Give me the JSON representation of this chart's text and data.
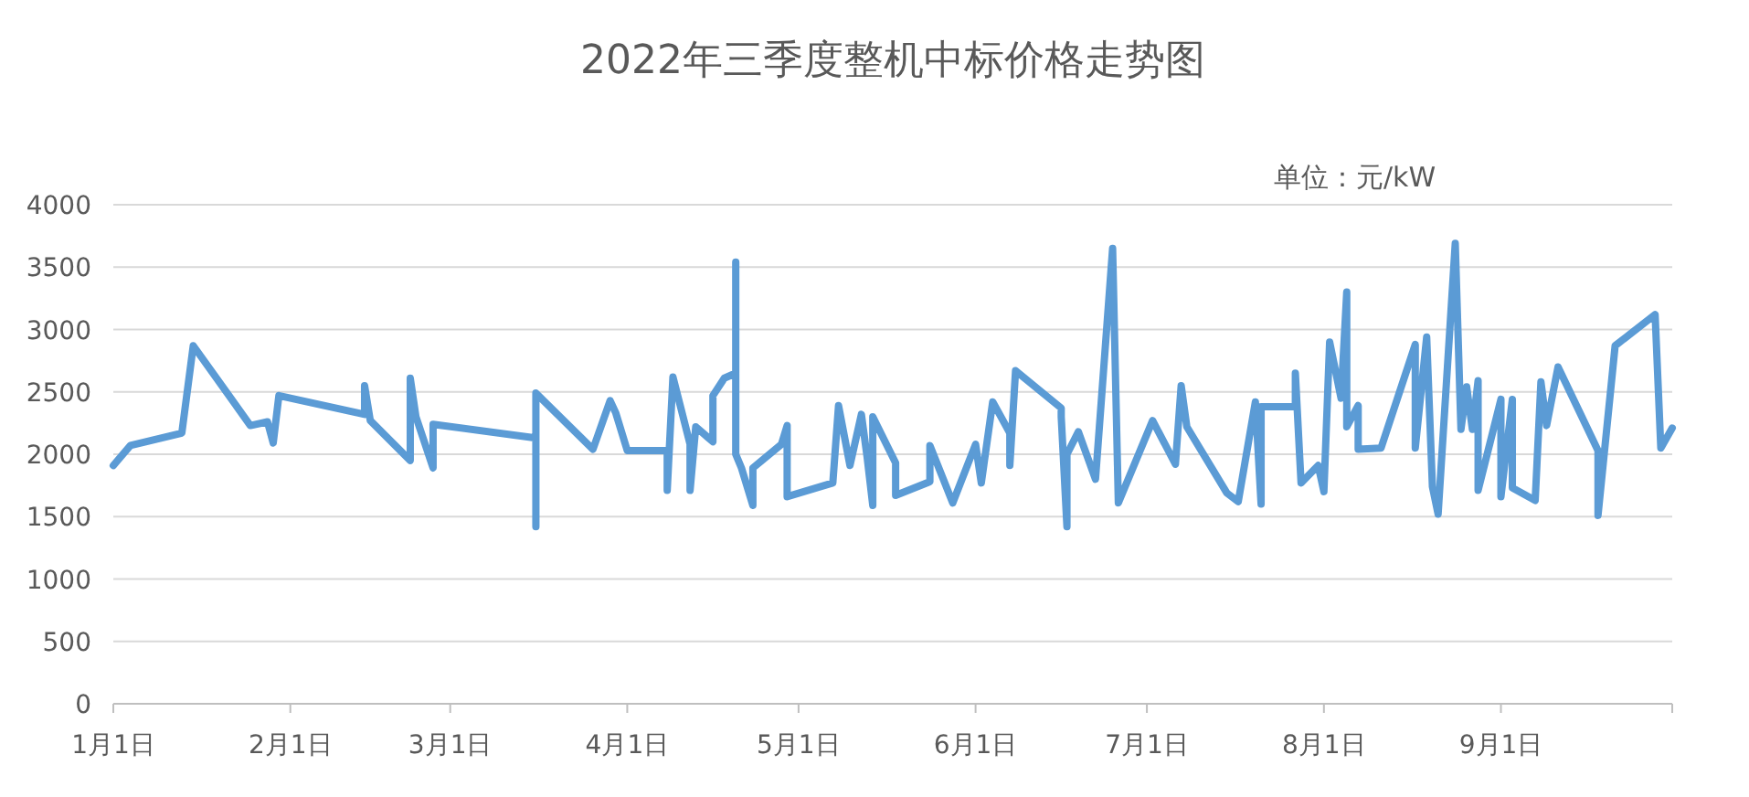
{
  "chart_data": {
    "type": "line",
    "title": "2022年三季度整机中标价格走势图",
    "annotations": [
      "单位：元/kW"
    ],
    "x": [
      "--01-01",
      "--01-04",
      "--01-13",
      "--01-15",
      "--01-25",
      "--01-28",
      "--01-29",
      "--01-30",
      "--02-14",
      "--02-14",
      "--02-15",
      "--02-22",
      "--02-22",
      "--02-23",
      "--02-26",
      "--02-26",
      "--03-16",
      "--03-16",
      "--03-16",
      "--03-26",
      "--03-29",
      "--03-30",
      "--04-01",
      "--04-08",
      "--04-08",
      "--04-09",
      "--04-12",
      "--04-12",
      "--04-13",
      "--04-15",
      "--04-16",
      "--04-16",
      "--04-18",
      "--04-20",
      "--04-20",
      "--04-20",
      "--04-21",
      "--04-23",
      "--04-23",
      "--04-28",
      "--04-29",
      "--04-29",
      "--05-07",
      "--05-08",
      "--05-10",
      "--05-12",
      "--05-13",
      "--05-14",
      "--05-14",
      "--05-18",
      "--05-18",
      "--05-24",
      "--05-24",
      "--05-28",
      "--06-01",
      "--06-02",
      "--06-04",
      "--06-07",
      "--06-07",
      "--06-08",
      "--06-16",
      "--06-16",
      "--06-17",
      "--06-17",
      "--06-19",
      "--06-22",
      "--06-25",
      "--06-26",
      "--07-02",
      "--07-06",
      "--07-07",
      "--07-08",
      "--07-15",
      "--07-17",
      "--07-20",
      "--07-21",
      "--07-21",
      "--07-27",
      "--07-27",
      "--07-28",
      "--07-31",
      "--08-01",
      "--08-02",
      "--08-04",
      "--08-05",
      "--08-05",
      "--08-07",
      "--08-07",
      "--08-11",
      "--08-17",
      "--08-17",
      "--08-19",
      "--08-20",
      "--08-21",
      "--08-24",
      "--08-25",
      "--08-26",
      "--08-27",
      "--08-28",
      "--08-28",
      "--09-01",
      "--09-01",
      "--09-03",
      "--09-03",
      "--09-07",
      "--09-08",
      "--09-09",
      "--09-11",
      "--09-18",
      "--09-18",
      "--09-21",
      "--09-28",
      "--09-29",
      "--10-01"
    ],
    "series": [
      {
        "color": "#5b9bd5",
        "values": [
          1910,
          2070,
          2170,
          2870,
          2230,
          2260,
          2090,
          2470,
          2320,
          2550,
          2270,
          1950,
          2610,
          2300,
          1890,
          2240,
          2130,
          1420,
          2490,
          2040,
          2430,
          2330,
          2030,
          2030,
          1710,
          2620,
          2080,
          1710,
          2220,
          2140,
          2100,
          2470,
          2610,
          2650,
          3540,
          2000,
          1890,
          1590,
          1890,
          2080,
          2230,
          1660,
          1770,
          2390,
          1910,
          2320,
          1980,
          1590,
          2300,
          1930,
          1670,
          1780,
          2070,
          1610,
          2080,
          1770,
          2420,
          2170,
          1910,
          2670,
          2370,
          2300,
          1420,
          2000,
          2180,
          1800,
          3650,
          1610,
          2270,
          1920,
          2550,
          2220,
          1690,
          1620,
          2420,
          1600,
          2380,
          2380,
          2650,
          1770,
          1910,
          1700,
          2900,
          2450,
          3300,
          2220,
          2390,
          2040,
          2050,
          2880,
          2050,
          2940,
          1740,
          1520,
          3690,
          2200,
          2540,
          2200,
          2590,
          1710,
          2440,
          1660,
          2440,
          1730,
          1630,
          2580,
          2230,
          2700,
          2030,
          1510,
          2870,
          3120,
          2050,
          2210
        ]
      }
    ],
    "xlim": [
      "--01-01",
      "--10-01"
    ],
    "xticks": [
      {
        "value": "--01-01",
        "label": "1月1日"
      },
      {
        "value": "--02-01",
        "label": "2月1日"
      },
      {
        "value": "--03-01",
        "label": "3月1日"
      },
      {
        "value": "--04-01",
        "label": "4月1日"
      },
      {
        "value": "--05-01",
        "label": "5月1日"
      },
      {
        "value": "--06-01",
        "label": "6月1日"
      },
      {
        "value": "--07-01",
        "label": "7月1日"
      },
      {
        "value": "--08-01",
        "label": "8月1日"
      },
      {
        "value": "--09-01",
        "label": "9月1日"
      },
      {
        "value": "--10-01",
        "label": null
      }
    ],
    "ylim": [
      0,
      4000
    ],
    "yticks": [
      0,
      500,
      1000,
      1500,
      2000,
      2500,
      3000,
      3500,
      4000
    ],
    "grid": "y"
  }
}
